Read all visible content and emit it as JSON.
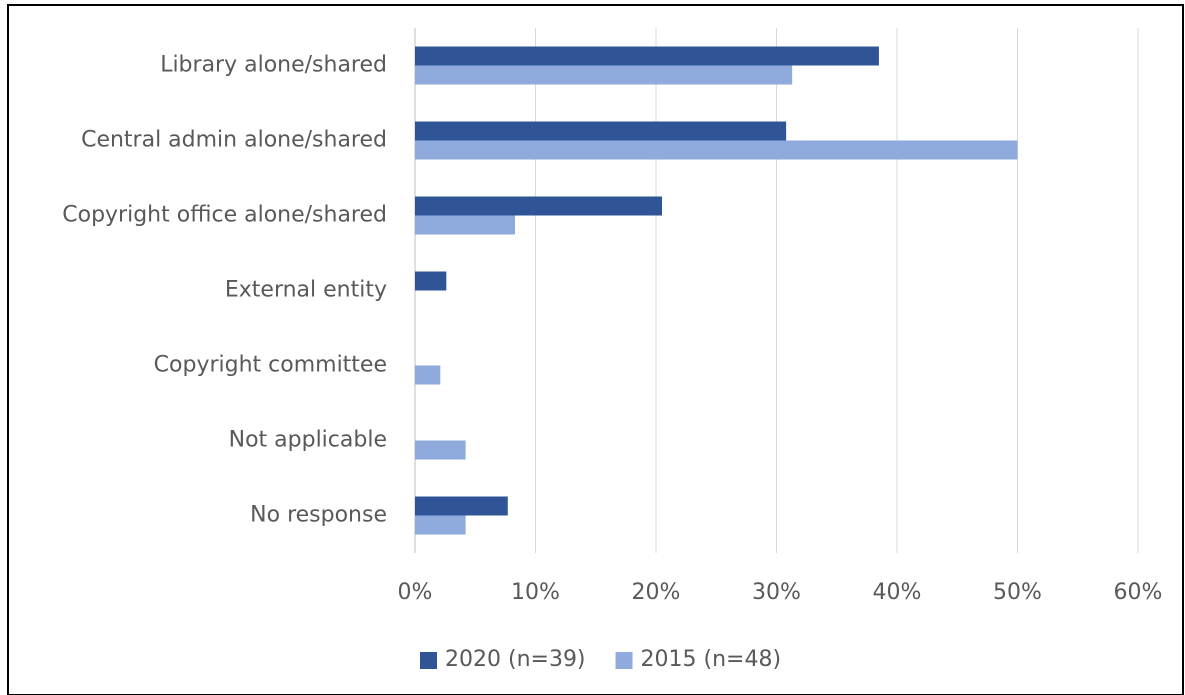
{
  "chart_data": {
    "type": "bar",
    "orientation": "horizontal",
    "categories": [
      "Library alone/shared",
      "Central admin alone/shared",
      "Copyright office alone/shared",
      "External entity",
      "Copyright committee",
      "Not applicable",
      "No response"
    ],
    "series": [
      {
        "name": "2020 (n=39)",
        "color": "#2f5597",
        "values": [
          38.5,
          30.8,
          20.5,
          2.6,
          0,
          0,
          7.7
        ]
      },
      {
        "name": "2015 (n=48)",
        "color": "#8faadc",
        "values": [
          31.3,
          50.0,
          8.3,
          0,
          2.1,
          4.2,
          4.2
        ]
      }
    ],
    "xlim": [
      0,
      60
    ],
    "xticks": [
      {
        "value": 0,
        "label": "0%"
      },
      {
        "value": 10,
        "label": "10%"
      },
      {
        "value": 20,
        "label": "20%"
      },
      {
        "value": 30,
        "label": "30%"
      },
      {
        "value": 40,
        "label": "40%"
      },
      {
        "value": 50,
        "label": "50%"
      },
      {
        "value": 60,
        "label": "60%"
      }
    ],
    "grid": true,
    "legend": "bottom"
  }
}
